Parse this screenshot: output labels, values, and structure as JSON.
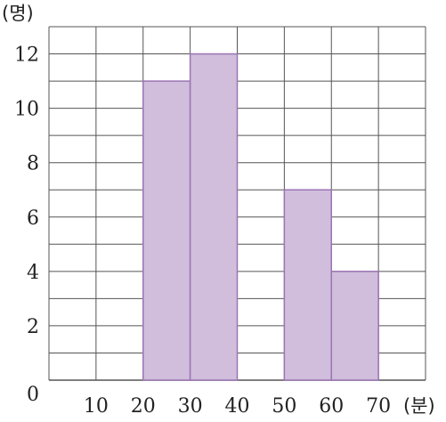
{
  "chart_data": {
    "type": "bar",
    "x_edges": [
      0,
      10,
      20,
      30,
      40,
      50,
      60,
      70,
      80
    ],
    "x_tick_labels": [
      "0",
      "10",
      "20",
      "30",
      "40",
      "50",
      "60",
      "70"
    ],
    "bins": [
      {
        "from": 20,
        "to": 30,
        "value": 11
      },
      {
        "from": 30,
        "to": 40,
        "value": 12
      },
      {
        "from": 50,
        "to": 60,
        "value": 7
      },
      {
        "from": 60,
        "to": 70,
        "value": 4
      }
    ],
    "y_ticks": [
      2,
      4,
      6,
      8,
      10,
      12
    ],
    "ylim": [
      0,
      13
    ],
    "xlabel": "(분)",
    "ylabel": "(명)",
    "grid": true,
    "colors": {
      "bar_fill": "#d0bedc",
      "bar_stroke": "#9a74b4",
      "grid": "#555555"
    }
  }
}
